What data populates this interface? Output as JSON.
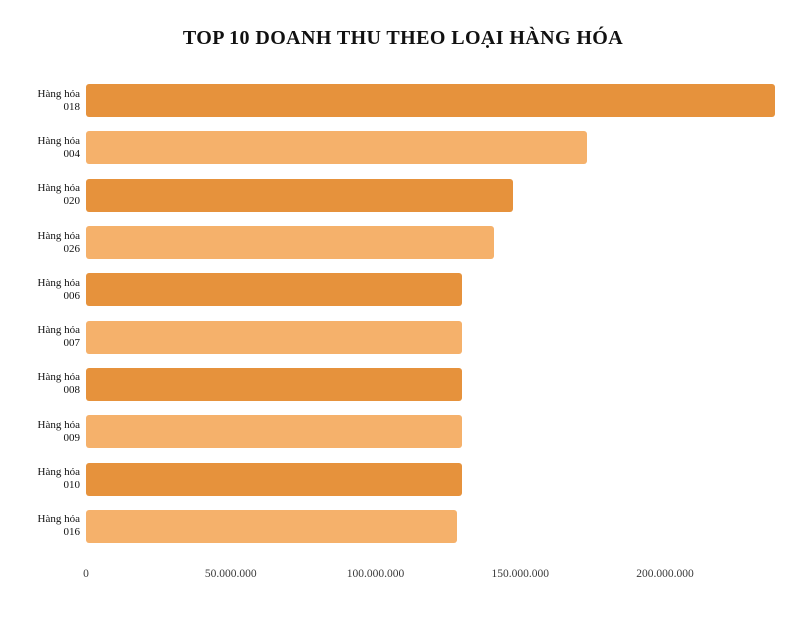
{
  "page": {
    "background": "#ffffff"
  },
  "chart_data": {
    "type": "bar",
    "orientation": "horizontal",
    "title": "TOP 10 DOANH THU THEO LOẠI HÀNG HÓA",
    "categories": [
      {
        "label": "Hàng hóa",
        "code": "018"
      },
      {
        "label": "Hàng hóa",
        "code": "004"
      },
      {
        "label": "Hàng hóa",
        "code": "020"
      },
      {
        "label": "Hàng hóa",
        "code": "026"
      },
      {
        "label": "Hàng hóa",
        "code": "006"
      },
      {
        "label": "Hàng hóa",
        "code": "007"
      },
      {
        "label": "Hàng hóa",
        "code": "008"
      },
      {
        "label": "Hàng hóa",
        "code": "009"
      },
      {
        "label": "Hàng hóa",
        "code": "010"
      },
      {
        "label": "Hàng hóa",
        "code": "016"
      }
    ],
    "values": [
      238000000,
      173000000,
      147500000,
      141000000,
      130000000,
      130000000,
      130000000,
      130000000,
      130000000,
      128000000
    ],
    "bar_colors": [
      "#E6923C",
      "#F5B16B",
      "#E6923C",
      "#F5B16B",
      "#E6923C",
      "#F5B16B",
      "#E6923C",
      "#F5B16B",
      "#E6923C",
      "#F5B16B"
    ],
    "x_ticks": [
      {
        "value": 0,
        "label": "0"
      },
      {
        "value": 50000000,
        "label": "50.000.000"
      },
      {
        "value": 100000000,
        "label": "100.000.000"
      },
      {
        "value": 150000000,
        "label": "150.000.000"
      },
      {
        "value": 200000000,
        "label": "200.000.000"
      }
    ],
    "xlim": [
      0,
      243000000
    ],
    "xlabel": "",
    "ylabel": "",
    "grid": false,
    "legend": false,
    "colors": {
      "dark_orange": "#E6923C",
      "light_orange": "#F5B16B",
      "title_text": "#111111",
      "tick_text": "#3a3a3a"
    }
  }
}
